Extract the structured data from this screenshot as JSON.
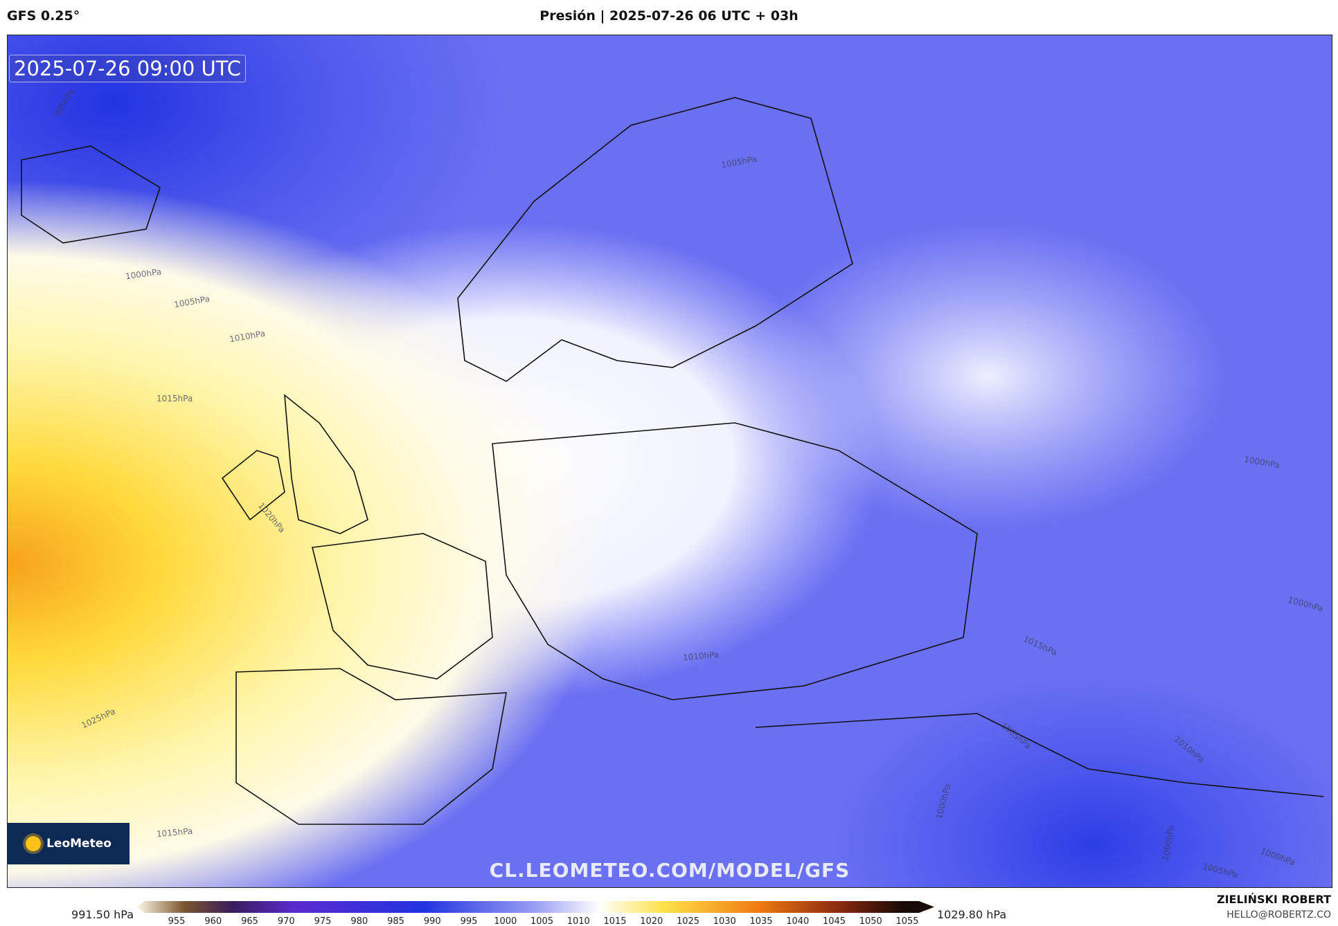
{
  "header": {
    "model": "GFS 0.25°",
    "title": "Presión | 2025-07-26 06 UTC + 03h"
  },
  "map": {
    "valid_time": "2025-07-26 09:00 UTC",
    "watermark": "CL.LEOMETEO.COM/MODEL/GFS",
    "logo": "LeoMeteo",
    "contour_labels": [
      "995hPa",
      "1000hPa",
      "1005hPa",
      "1010hPa",
      "1015hPa",
      "1020hPa",
      "1025hPa",
      "1015hPa",
      "1005hPa",
      "1010hPa",
      "1015hPa",
      "1005hPa",
      "1010hPa",
      "1000hPa",
      "1000hPa",
      "1000hPa",
      "1000hPa",
      "1005hPa",
      "1000hPa"
    ]
  },
  "colorbar": {
    "min_label": "991.50 hPa",
    "max_label": "1029.80 hPa",
    "ticks": [
      955,
      960,
      965,
      970,
      975,
      980,
      985,
      990,
      995,
      1000,
      1005,
      1010,
      1015,
      1020,
      1025,
      1030,
      1035,
      1040,
      1045,
      1050,
      1055
    ]
  },
  "footer": {
    "author": "ZIELIŃSKI ROBERT",
    "email": "HELLO@ROBERTZ.CO"
  }
}
